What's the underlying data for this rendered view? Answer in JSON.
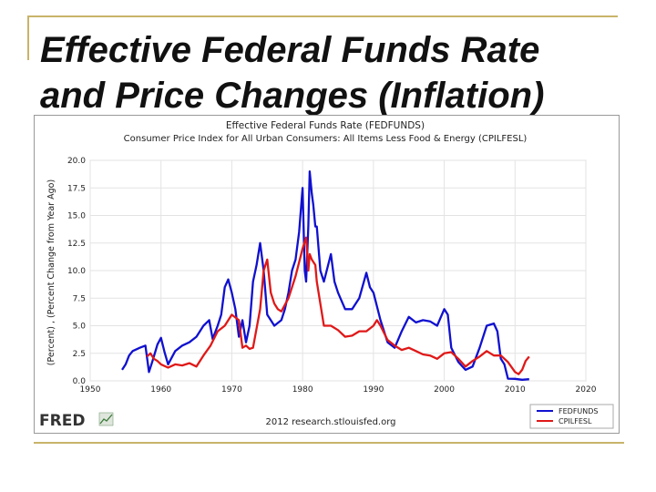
{
  "slide": {
    "title_line1": "Effective Federal Funds Rate",
    "title_line2": "and Price Changes (Inflation)"
  },
  "colors": {
    "fedfunds": "#1010d0",
    "cpilfesl": "#e01818",
    "frame": "#999999",
    "plot_bg": "#ffffff",
    "text": "#222222"
  },
  "chart_data": {
    "type": "line",
    "title_line1": "Effective Federal Funds Rate (FEDFUNDS)",
    "title_line2": "Consumer Price Index for All Urban Consumers: All Items Less Food & Energy (CPILFESL)",
    "ylabel": "(Percent) , (Percent Change from Year Ago)",
    "xlabel": "",
    "xlim": [
      1950,
      2020
    ],
    "ylim": [
      0,
      20
    ],
    "xticks": [
      1950,
      1960,
      1970,
      1980,
      1990,
      2000,
      2010,
      2020
    ],
    "yticks": [
      "0.0",
      "2.5",
      "5.0",
      "7.5",
      "10.0",
      "12.5",
      "15.0",
      "17.5",
      "20.0"
    ],
    "grid": true,
    "legend_position": "bottom-right",
    "source_note": "2012 research.stlouisfed.org",
    "brand": "FRED",
    "series": [
      {
        "name": "FEDFUNDS",
        "x": [
          1954.5,
          1955,
          1955.5,
          1956,
          1957,
          1957.8,
          1958.3,
          1958.8,
          1959.5,
          1960,
          1960.5,
          1961,
          1962,
          1963,
          1964,
          1965,
          1966,
          1966.8,
          1967.3,
          1968,
          1968.5,
          1969,
          1969.5,
          1970,
          1970.5,
          1971,
          1971.5,
          1972,
          1972.5,
          1973,
          1973.5,
          1974,
          1974.5,
          1975,
          1975.5,
          1976,
          1977,
          1977.5,
          1978,
          1978.5,
          1979,
          1979.5,
          1980,
          1980.3,
          1980.5,
          1980.8,
          1981,
          1981.3,
          1981.5,
          1981.8,
          1982,
          1982.5,
          1983,
          1984,
          1984.5,
          1985,
          1986,
          1987,
          1988,
          1989,
          1989.5,
          1990,
          1991,
          1992,
          1993,
          1994,
          1995,
          1996,
          1997,
          1998,
          1999,
          2000,
          2000.5,
          2001,
          2002,
          2003,
          2004,
          2005,
          2006,
          2007,
          2007.5,
          2008,
          2008.5,
          2009,
          2010,
          2011,
          2012
        ],
        "values": [
          1.0,
          1.5,
          2.3,
          2.7,
          3.0,
          3.2,
          0.8,
          1.8,
          3.3,
          3.9,
          2.6,
          1.5,
          2.7,
          3.2,
          3.5,
          4.0,
          5.0,
          5.5,
          3.8,
          5.0,
          6.0,
          8.5,
          9.2,
          8.0,
          6.5,
          4.0,
          5.5,
          3.5,
          5.0,
          9.0,
          10.5,
          12.5,
          10.0,
          6.0,
          5.5,
          5.0,
          5.5,
          6.5,
          8.0,
          10.0,
          11.0,
          13.5,
          17.5,
          10.0,
          9.0,
          14.0,
          19.0,
          17.0,
          16.0,
          14.0,
          14.0,
          10.0,
          9.0,
          11.5,
          9.0,
          8.0,
          6.5,
          6.5,
          7.5,
          9.8,
          8.5,
          8.0,
          5.5,
          3.5,
          3.0,
          4.5,
          5.8,
          5.3,
          5.5,
          5.4,
          5.0,
          6.5,
          6.0,
          3.0,
          1.7,
          1.0,
          1.3,
          3.0,
          5.0,
          5.2,
          4.5,
          2.0,
          1.5,
          0.2,
          0.18,
          0.1,
          0.15
        ]
      },
      {
        "name": "CPILFESL",
        "x": [
          1958,
          1958.5,
          1959,
          1959.5,
          1960,
          1961,
          1962,
          1963,
          1964,
          1965,
          1966,
          1967,
          1968,
          1969,
          1970,
          1971,
          1971.5,
          1972,
          1972.5,
          1973,
          1974,
          1974.5,
          1975,
          1975.5,
          1976,
          1976.5,
          1977,
          1978,
          1979,
          1980,
          1980.5,
          1980.8,
          1981,
          1981.3,
          1981.8,
          1982,
          1983,
          1984,
          1985,
          1986,
          1987,
          1988,
          1989,
          1990,
          1990.5,
          1991,
          1992,
          1993,
          1994,
          1995,
          1996,
          1997,
          1998,
          1999,
          2000,
          2001,
          2002,
          2003,
          2004,
          2005,
          2006,
          2007,
          2008,
          2009,
          2010,
          2010.5,
          2011,
          2011.5,
          2012
        ],
        "values": [
          2.2,
          2.5,
          2.0,
          1.8,
          1.5,
          1.2,
          1.5,
          1.4,
          1.6,
          1.3,
          2.3,
          3.2,
          4.5,
          5.0,
          6.0,
          5.5,
          3.0,
          3.2,
          2.9,
          3.0,
          6.5,
          10.0,
          11.0,
          8.0,
          7.0,
          6.5,
          6.3,
          7.5,
          9.5,
          12.0,
          13.0,
          10.0,
          11.5,
          11.0,
          10.5,
          9.0,
          5.0,
          5.0,
          4.6,
          4.0,
          4.1,
          4.5,
          4.5,
          5.0,
          5.5,
          5.0,
          3.7,
          3.2,
          2.8,
          3.0,
          2.7,
          2.4,
          2.3,
          2.0,
          2.5,
          2.6,
          2.0,
          1.3,
          1.8,
          2.2,
          2.7,
          2.3,
          2.3,
          1.7,
          0.8,
          0.6,
          1.0,
          1.8,
          2.2
        ]
      }
    ]
  }
}
